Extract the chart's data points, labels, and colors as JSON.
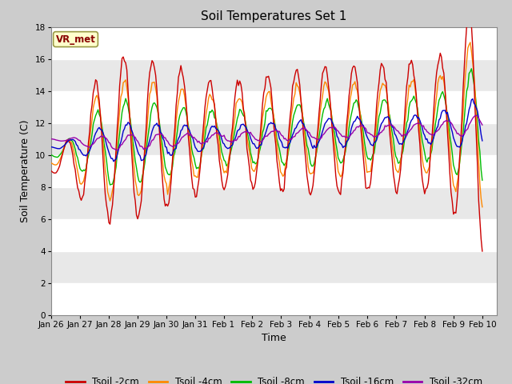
{
  "title": "Soil Temperatures Set 1",
  "xlabel": "Time",
  "ylabel": "Soil Temperature (C)",
  "ylim": [
    0,
    18
  ],
  "yticks": [
    0,
    2,
    4,
    6,
    8,
    10,
    12,
    14,
    16,
    18
  ],
  "series_colors": {
    "Tsoil -2cm": "#cc0000",
    "Tsoil -4cm": "#ff8800",
    "Tsoil -8cm": "#00bb00",
    "Tsoil -16cm": "#0000cc",
    "Tsoil -32cm": "#9900aa"
  },
  "annotation_text": "VR_met",
  "annotation_bg": "#ffffcc",
  "annotation_border": "#999944",
  "fig_facecolor": "#cccccc",
  "plot_facecolor": "#e8e8e8",
  "grid_color": "#ffffff",
  "title_fontsize": 11,
  "label_fontsize": 9,
  "tick_fontsize": 7.5,
  "legend_fontsize": 8.5,
  "tick_labels": [
    "Jan 26",
    "Jan 27",
    "Jan 28",
    "Jan 29",
    "Jan 30",
    "Jan 31",
    "Feb 1",
    "Feb 2",
    "Feb 3",
    "Feb 4",
    "Feb 5",
    "Feb 6",
    "Feb 7",
    "Feb 8",
    "Feb 9",
    "Feb 10"
  ]
}
